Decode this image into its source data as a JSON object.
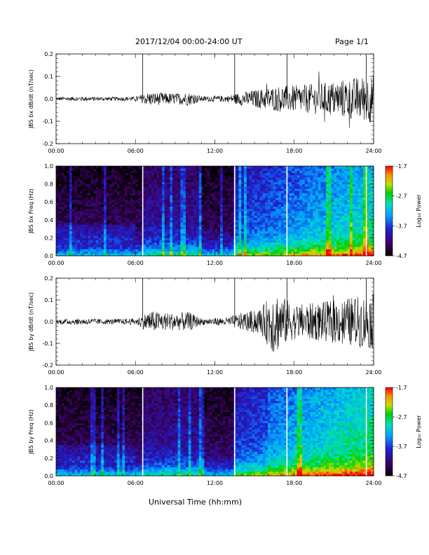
{
  "header": {
    "title": "2017/12/04  00:00-24:00 UT",
    "page": "Page 1/1"
  },
  "footer": {
    "x_title": "Universal Time (hh:mm)"
  },
  "colors": {
    "trace": "#000000",
    "gap_line": "#000000",
    "spectrogram_gap": "#ffffff"
  },
  "chart_data": [
    {
      "type": "line",
      "ylabel": "JBS bx dB/dt (nT/sec)",
      "xlim": [
        0,
        24
      ],
      "ylim": [
        -0.2,
        0.2
      ],
      "x_ticks": [
        "00:00",
        "06:00",
        "12:00",
        "18:00",
        "24:00"
      ],
      "y_ticks": [
        "0.2",
        "0.1",
        "0.0",
        "-0.1",
        "-0.2"
      ],
      "gap_markers_hr": [
        6.55,
        13.5,
        17.45,
        23.45
      ],
      "amplitude_envelope": {
        "x_hr": [
          0,
          2,
          4,
          6,
          6.5,
          7,
          9,
          10,
          11,
          13,
          14,
          16,
          17,
          18,
          20,
          22,
          24
        ],
        "half_range": [
          0.008,
          0.01,
          0.008,
          0.01,
          0.02,
          0.03,
          0.025,
          0.03,
          0.012,
          0.015,
          0.03,
          0.05,
          0.06,
          0.06,
          0.07,
          0.09,
          0.11
        ]
      }
    },
    {
      "type": "heatmap",
      "ylabel": "JBS bx Freq (Hz)",
      "xlim": [
        0,
        24
      ],
      "ylim": [
        0.0,
        1.0
      ],
      "x_ticks": [
        "00:00",
        "06:00",
        "12:00",
        "18:00",
        "24:00"
      ],
      "y_ticks": [
        "1.0",
        "0.8",
        "0.6",
        "0.4",
        "0.2",
        "0.0"
      ],
      "colorbar": {
        "label": "Log₁₀ Power",
        "ticks": [
          "-1.7",
          "-2.7",
          "-3.7",
          "-4.7"
        ],
        "range": [
          -4.7,
          -1.7
        ]
      },
      "gap_markers_hr": [
        6.55,
        13.5,
        17.45,
        23.45
      ]
    },
    {
      "type": "line",
      "ylabel": "JBS by dB/dt (nT/sec)",
      "xlim": [
        0,
        24
      ],
      "ylim": [
        -0.2,
        0.2
      ],
      "x_ticks": [
        "00:00",
        "06:00",
        "12:00",
        "18:00",
        "24:00"
      ],
      "y_ticks": [
        "0.2",
        "0.1",
        "0.0",
        "-0.1",
        "-0.2"
      ],
      "gap_markers_hr": [
        6.55,
        13.5,
        17.45,
        23.45
      ],
      "amplitude_envelope": {
        "x_hr": [
          0,
          2,
          4,
          6,
          6.5,
          7,
          9,
          10,
          11,
          13,
          14,
          15.5,
          16.5,
          17,
          18,
          20,
          22,
          24
        ],
        "half_range": [
          0.012,
          0.015,
          0.012,
          0.015,
          0.03,
          0.05,
          0.04,
          0.045,
          0.015,
          0.02,
          0.04,
          0.06,
          0.16,
          0.12,
          0.08,
          0.09,
          0.11,
          0.13
        ]
      }
    },
    {
      "type": "heatmap",
      "ylabel": "JBS by Freq (Hz)",
      "xlim": [
        0,
        24
      ],
      "ylim": [
        0.0,
        1.0
      ],
      "x_ticks": [
        "00:00",
        "06:00",
        "12:00",
        "18:00",
        "24:00"
      ],
      "y_ticks": [
        "1.0",
        "0.8",
        "0.6",
        "0.4",
        "0.2",
        "0.0"
      ],
      "colorbar": {
        "label": "Log₁₀ Power",
        "ticks": [
          "-1.7",
          "-2.7",
          "-3.7",
          "-4.7"
        ],
        "range": [
          -4.7,
          -1.7
        ]
      },
      "gap_markers_hr": [
        6.55,
        13.5,
        17.45,
        23.45
      ]
    }
  ]
}
